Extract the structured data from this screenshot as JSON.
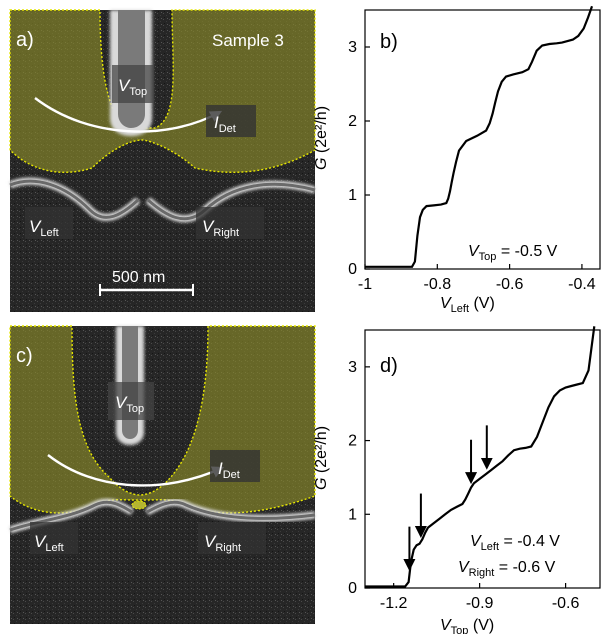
{
  "panels": {
    "a": {
      "label": "a)",
      "sample": "Sample 3",
      "vtop": "V",
      "vtop_sub": "Top",
      "idet": "I",
      "idet_sub": "Det",
      "vleft": "V",
      "vleft_sub": "Left",
      "vright": "V",
      "vright_sub": "Right",
      "scalebar": "500 nm"
    },
    "c": {
      "label": "c)",
      "vtop": "V",
      "vtop_sub": "Top",
      "idet": "I",
      "idet_sub": "Det",
      "vleft": "V",
      "vleft_sub": "Left",
      "vright": "V",
      "vright_sub": "Right"
    }
  },
  "chart_data": [
    {
      "type": "line",
      "panel": "b)",
      "xlabel_main": "V",
      "xlabel_sub": "Left",
      "xlabel_unit": " (V)",
      "ylabel_main": "G",
      "ylabel_unit": " (2e²/h)",
      "xlim": [
        -1.0,
        -0.35
      ],
      "ylim": [
        0,
        3.5
      ],
      "xticks": [
        -1,
        -0.8,
        -0.6,
        -0.4
      ],
      "xtick_labels": [
        "-1",
        "-0.8",
        "-0.6",
        "-0.4"
      ],
      "yticks": [
        0,
        1,
        2,
        3
      ],
      "ytick_labels": [
        "0",
        "1",
        "2",
        "3"
      ],
      "annotation_main": "V",
      "annotation_sub": "Top",
      "annotation_value": " = -0.5 V",
      "series": [
        {
          "x": [
            -1.0,
            -0.87,
            -0.862,
            -0.855,
            -0.848,
            -0.84,
            -0.83,
            -0.81,
            -0.79,
            -0.775,
            -0.77,
            -0.765,
            -0.76,
            -0.755,
            -0.748,
            -0.74,
            -0.72,
            -0.69,
            -0.665,
            -0.655,
            -0.647,
            -0.64,
            -0.632,
            -0.622,
            -0.61,
            -0.59,
            -0.565,
            -0.548,
            -0.538,
            -0.525,
            -0.51,
            -0.49,
            -0.47,
            -0.455,
            -0.44,
            -0.425,
            -0.41,
            -0.395,
            -0.383,
            -0.372
          ],
          "y": [
            0.03,
            0.03,
            0.1,
            0.45,
            0.7,
            0.8,
            0.85,
            0.86,
            0.87,
            0.89,
            0.95,
            1.05,
            1.18,
            1.3,
            1.45,
            1.6,
            1.73,
            1.8,
            1.87,
            1.97,
            2.1,
            2.25,
            2.4,
            2.53,
            2.6,
            2.63,
            2.66,
            2.7,
            2.8,
            2.95,
            3.02,
            3.04,
            3.05,
            3.06,
            3.08,
            3.1,
            3.15,
            3.25,
            3.4,
            3.55
          ]
        }
      ]
    },
    {
      "type": "line",
      "panel": "d)",
      "xlabel_main": "V",
      "xlabel_sub": "Top",
      "xlabel_unit": " (V)",
      "ylabel_main": "G",
      "ylabel_unit": " (2e²/h)",
      "xlim": [
        -1.3,
        -0.48
      ],
      "ylim": [
        0,
        3.5
      ],
      "xticks": [
        -1.2,
        -0.9,
        -0.6
      ],
      "xtick_labels": [
        "-1.2",
        "-0.9",
        "-0.6"
      ],
      "yticks": [
        0,
        1,
        2,
        3
      ],
      "ytick_labels": [
        "0",
        "1",
        "2",
        "3"
      ],
      "annotation1_main": "V",
      "annotation1_sub": "Left",
      "annotation1_value": " = -0.4 V",
      "annotation2_main": "V",
      "annotation2_sub": "Right",
      "annotation2_value": " = -0.6 V",
      "arrows_x": [
        -1.145,
        -1.105,
        -0.93,
        -0.875
      ],
      "series": [
        {
          "x": [
            -1.3,
            -1.16,
            -1.148,
            -1.14,
            -1.13,
            -1.12,
            -1.11,
            -1.1,
            -1.09,
            -1.08,
            -1.06,
            -1.04,
            -1.02,
            -1.0,
            -0.98,
            -0.96,
            -0.95,
            -0.94,
            -0.93,
            -0.92,
            -0.9,
            -0.88,
            -0.86,
            -0.84,
            -0.82,
            -0.8,
            -0.78,
            -0.76,
            -0.74,
            -0.72,
            -0.7,
            -0.68,
            -0.66,
            -0.64,
            -0.62,
            -0.6,
            -0.58,
            -0.56,
            -0.54,
            -0.52,
            -0.51,
            -0.5
          ],
          "y": [
            0.02,
            0.02,
            0.08,
            0.35,
            0.52,
            0.58,
            0.6,
            0.66,
            0.75,
            0.82,
            0.88,
            0.94,
            1.0,
            1.06,
            1.1,
            1.14,
            1.2,
            1.28,
            1.36,
            1.42,
            1.48,
            1.54,
            1.6,
            1.66,
            1.72,
            1.8,
            1.87,
            1.89,
            1.9,
            1.92,
            2.05,
            2.25,
            2.45,
            2.6,
            2.68,
            2.72,
            2.74,
            2.76,
            2.78,
            2.95,
            3.25,
            3.55
          ]
        }
      ]
    }
  ]
}
